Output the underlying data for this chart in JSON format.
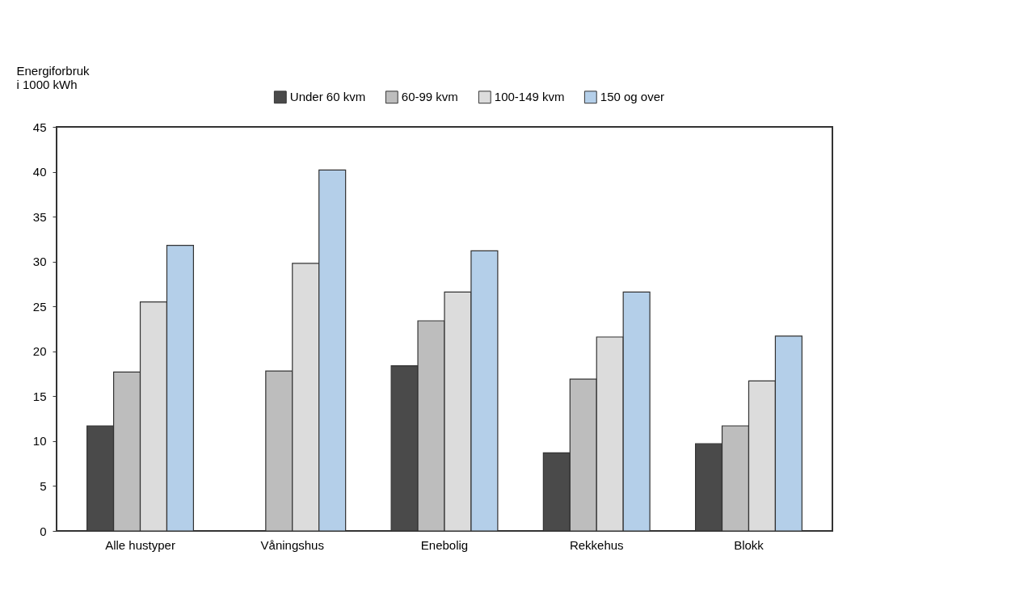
{
  "chart_data": {
    "type": "bar",
    "ylabel": "Energiforbruk\ni 1000 kWh",
    "categories": [
      "Alle hustyper",
      "Våningshus",
      "Enebolig",
      "Rekkehus",
      "Blokk"
    ],
    "series": [
      {
        "name": "Under 60 kvm",
        "color": "#4a4a4a",
        "values": [
          11.7,
          null,
          18.4,
          8.7,
          9.7
        ]
      },
      {
        "name": "60-99 kvm",
        "color": "#bdbdbd",
        "values": [
          17.7,
          17.8,
          23.4,
          16.9,
          11.7
        ]
      },
      {
        "name": "100-149 kvm",
        "color": "#dcdcdc",
        "values": [
          25.5,
          29.8,
          26.6,
          21.6,
          16.7
        ]
      },
      {
        "name": "150 og over",
        "color": "#b4cfe9",
        "values": [
          31.8,
          40.2,
          31.2,
          26.6,
          21.7
        ]
      }
    ],
    "ylim": [
      0,
      45
    ],
    "yticks": [
      0,
      5,
      10,
      15,
      20,
      25,
      30,
      35,
      40,
      45
    ],
    "grid": false,
    "legend": "top"
  }
}
